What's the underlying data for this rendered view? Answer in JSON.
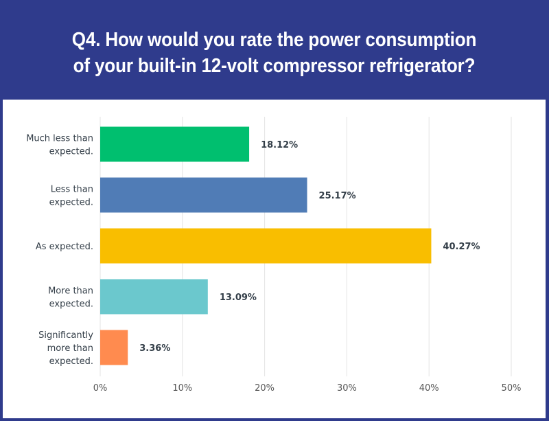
{
  "header": {
    "title_line1": "Q4. How would you rate the power consumption",
    "title_line2": "of your built-in 12-volt compressor refrigerator?"
  },
  "colors": {
    "header_bg": "#2f3b8c"
  },
  "chart_data": {
    "type": "bar",
    "orientation": "horizontal",
    "title": "Q4. How would you rate the power consumption of your built-in 12-volt compressor refrigerator?",
    "categories": [
      [
        "Much less than",
        "expected."
      ],
      [
        "Less than",
        "expected."
      ],
      [
        "As expected."
      ],
      [
        "More than",
        "expected."
      ],
      [
        "Significantly",
        "more than",
        "expected."
      ]
    ],
    "values": [
      18.12,
      25.17,
      40.27,
      13.09,
      3.36
    ],
    "value_labels": [
      "18.12%",
      "25.17%",
      "40.27%",
      "13.09%",
      "3.36%"
    ],
    "colors": [
      "#00bf6f",
      "#507cb6",
      "#f9be00",
      "#6bc8cd",
      "#ff8b4f"
    ],
    "xlim": [
      0,
      50
    ],
    "xticks": [
      0,
      10,
      20,
      30,
      40,
      50
    ],
    "xtick_labels": [
      "0%",
      "10%",
      "20%",
      "30%",
      "40%",
      "50%"
    ],
    "grid": true,
    "xlabel": "",
    "ylabel": ""
  }
}
